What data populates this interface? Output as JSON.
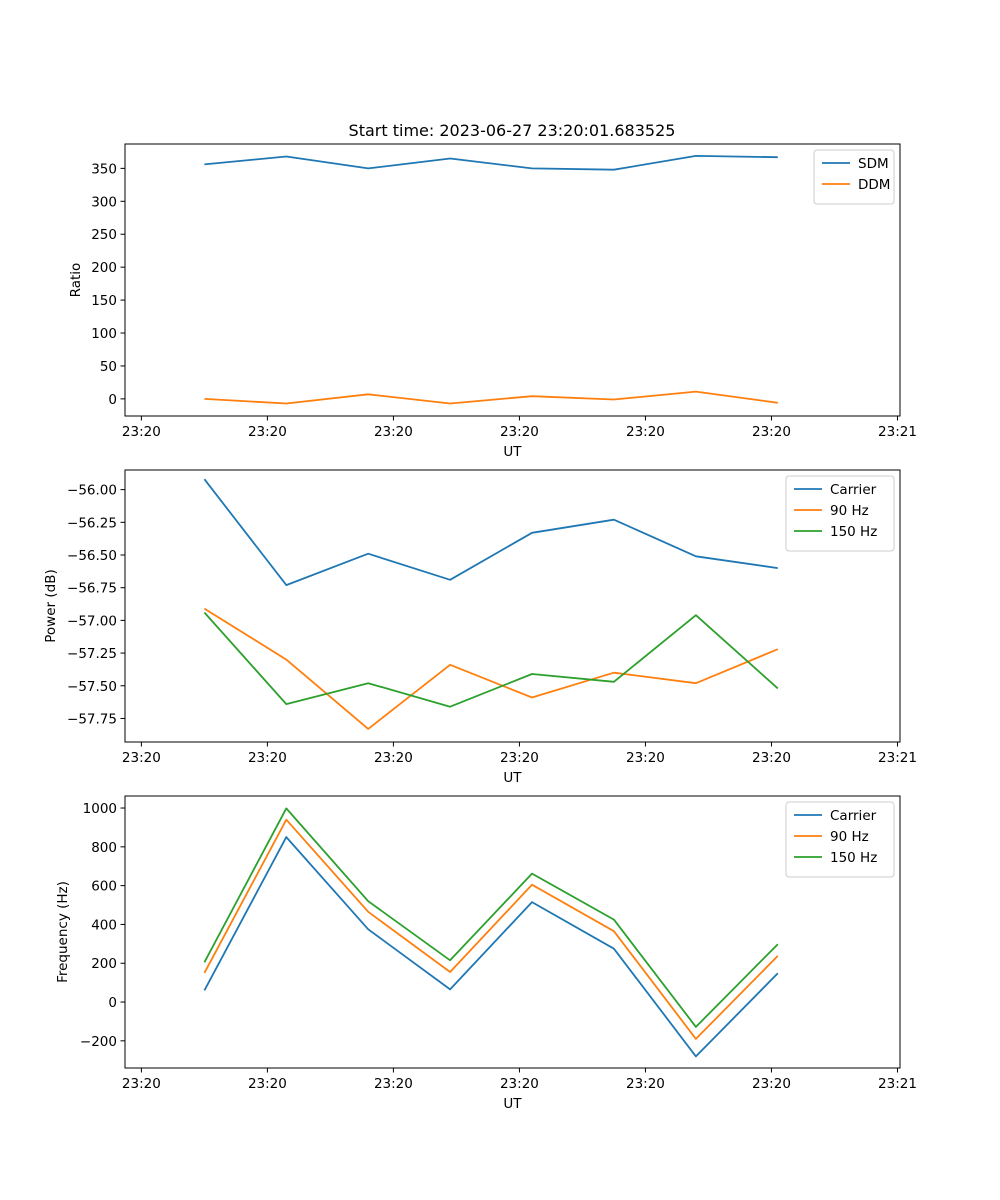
{
  "title": "Start time: 2023-06-27 23:20:01.683525",
  "chart_data": [
    {
      "type": "line",
      "title": "Start time: 2023-06-27 23:20:01.683525",
      "xlabel": "UT",
      "ylabel": "Ratio",
      "x_ticks": [
        "23:20",
        "23:20",
        "23:20",
        "23:20",
        "23:20",
        "23:20",
        "23:21"
      ],
      "x_tick_positions": [
        0,
        1,
        2,
        3,
        4,
        5,
        6
      ],
      "x": [
        0.5,
        1.15,
        1.8,
        2.45,
        3.1,
        3.75,
        4.4,
        5.05
      ],
      "xlim": [
        -0.13,
        6.02
      ],
      "ylim": [
        -26,
        387
      ],
      "y_ticks": [
        0,
        50,
        100,
        150,
        200,
        250,
        300,
        350
      ],
      "legend": "top-right",
      "series": [
        {
          "name": "SDM",
          "color": "#1f77b4",
          "values": [
            356,
            368,
            350,
            365,
            350,
            348,
            369,
            367
          ]
        },
        {
          "name": "DDM",
          "color": "#ff7f0e",
          "values": [
            0,
            -7,
            7,
            -7,
            4,
            -1,
            11,
            -6
          ]
        }
      ]
    },
    {
      "type": "line",
      "xlabel": "UT",
      "ylabel": "Power (dB)",
      "x_ticks": [
        "23:20",
        "23:20",
        "23:20",
        "23:20",
        "23:20",
        "23:20",
        "23:21"
      ],
      "x_tick_positions": [
        0,
        1,
        2,
        3,
        4,
        5,
        6
      ],
      "x": [
        0.5,
        1.15,
        1.8,
        2.45,
        3.1,
        3.75,
        4.4,
        5.05
      ],
      "xlim": [
        -0.13,
        6.02
      ],
      "ylim": [
        -57.93,
        -55.85
      ],
      "y_ticks": [
        -57.75,
        -57.5,
        -57.25,
        -57.0,
        -56.75,
        -56.5,
        -56.25,
        -56.0
      ],
      "y_tick_labels": [
        "−57.75",
        "−57.50",
        "−57.25",
        "−57.00",
        "−56.75",
        "−56.50",
        "−56.25",
        "−56.00"
      ],
      "legend": "top-right",
      "series": [
        {
          "name": "Carrier",
          "color": "#1f77b4",
          "values": [
            -55.92,
            -56.73,
            -56.49,
            -56.69,
            -56.33,
            -56.23,
            -56.51,
            -56.6
          ]
        },
        {
          "name": "90 Hz",
          "color": "#ff7f0e",
          "values": [
            -56.91,
            -57.3,
            -57.83,
            -57.34,
            -57.59,
            -57.4,
            -57.48,
            -57.22
          ]
        },
        {
          "name": "150 Hz",
          "color": "#2ca02c",
          "values": [
            -56.94,
            -57.64,
            -57.48,
            -57.66,
            -57.41,
            -57.47,
            -56.96,
            -57.52
          ]
        }
      ]
    },
    {
      "type": "line",
      "xlabel": "UT",
      "ylabel": "Frequency (Hz)",
      "x_ticks": [
        "23:20",
        "23:20",
        "23:20",
        "23:20",
        "23:20",
        "23:20",
        "23:21"
      ],
      "x_tick_positions": [
        0,
        1,
        2,
        3,
        4,
        5,
        6
      ],
      "x": [
        0.5,
        1.15,
        1.8,
        2.45,
        3.1,
        3.75,
        4.4,
        5.05
      ],
      "xlim": [
        -0.13,
        6.02
      ],
      "ylim": [
        -340,
        1062
      ],
      "y_ticks": [
        -200,
        0,
        200,
        400,
        600,
        800,
        1000
      ],
      "y_tick_labels": [
        "−200",
        "0",
        "200",
        "400",
        "600",
        "800",
        "1000"
      ],
      "legend": "top-right",
      "series": [
        {
          "name": "Carrier",
          "color": "#1f77b4",
          "values": [
            60,
            850,
            375,
            65,
            515,
            275,
            -280,
            148
          ]
        },
        {
          "name": "90 Hz",
          "color": "#ff7f0e",
          "values": [
            150,
            940,
            465,
            155,
            605,
            365,
            -190,
            238
          ]
        },
        {
          "name": "150 Hz",
          "color": "#2ca02c",
          "values": [
            205,
            998,
            520,
            215,
            662,
            425,
            -128,
            298
          ]
        }
      ]
    }
  ]
}
